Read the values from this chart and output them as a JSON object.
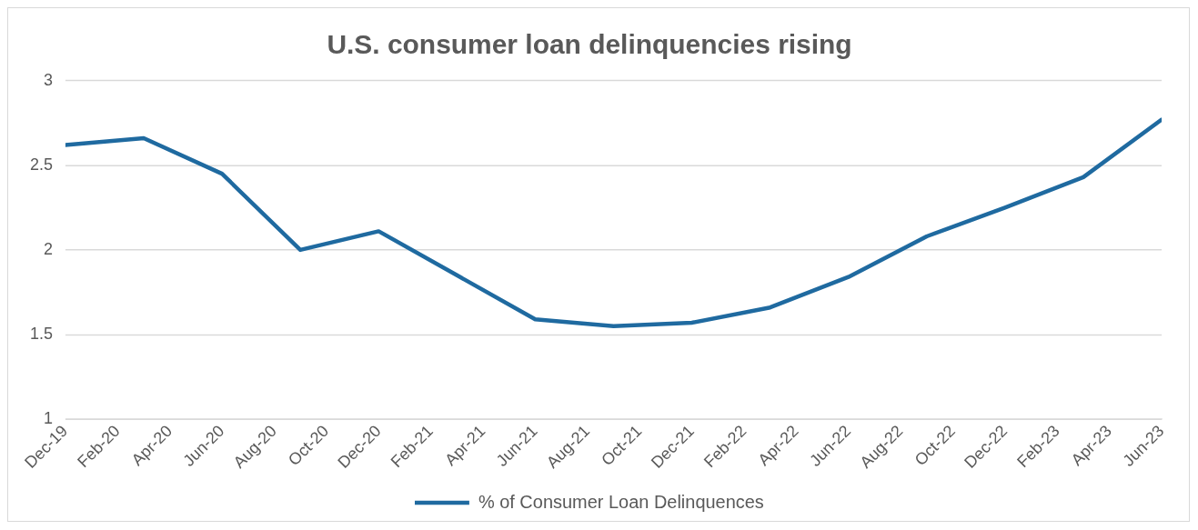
{
  "chart_data": {
    "type": "line",
    "title": "U.S. consumer loan delinquencies rising",
    "x": [
      "2019-12",
      "2020-03",
      "2020-06",
      "2020-09",
      "2020-12",
      "2021-03",
      "2021-06",
      "2021-09",
      "2021-12",
      "2022-03",
      "2022-06",
      "2022-09",
      "2022-12",
      "2023-03",
      "2023-06"
    ],
    "series": [
      {
        "name": "% of Consumer Loan Delinquences",
        "color": "#1f6aa0",
        "values": [
          2.62,
          2.66,
          2.45,
          2.0,
          2.11,
          1.85,
          1.59,
          1.55,
          1.57,
          1.66,
          1.84,
          2.08,
          2.25,
          2.43,
          2.77
        ]
      }
    ],
    "xlim": [
      "2019-12",
      "2023-06"
    ],
    "xticks": [
      {
        "value": "2019-12",
        "label": "Dec-19"
      },
      {
        "value": "2020-02",
        "label": "Feb-20"
      },
      {
        "value": "2020-04",
        "label": "Apr-20"
      },
      {
        "value": "2020-06",
        "label": "Jun-20"
      },
      {
        "value": "2020-08",
        "label": "Aug-20"
      },
      {
        "value": "2020-10",
        "label": "Oct-20"
      },
      {
        "value": "2020-12",
        "label": "Dec-20"
      },
      {
        "value": "2021-02",
        "label": "Feb-21"
      },
      {
        "value": "2021-04",
        "label": "Apr-21"
      },
      {
        "value": "2021-06",
        "label": "Jun-21"
      },
      {
        "value": "2021-08",
        "label": "Aug-21"
      },
      {
        "value": "2021-10",
        "label": "Oct-21"
      },
      {
        "value": "2021-12",
        "label": "Dec-21"
      },
      {
        "value": "2022-02",
        "label": "Feb-22"
      },
      {
        "value": "2022-04",
        "label": "Apr-22"
      },
      {
        "value": "2022-06",
        "label": "Jun-22"
      },
      {
        "value": "2022-08",
        "label": "Aug-22"
      },
      {
        "value": "2022-10",
        "label": "Oct-22"
      },
      {
        "value": "2022-12",
        "label": "Dec-22"
      },
      {
        "value": "2023-02",
        "label": "Feb-23"
      },
      {
        "value": "2023-04",
        "label": "Apr-23"
      },
      {
        "value": "2023-06",
        "label": "Jun-23"
      }
    ],
    "ylim": [
      1,
      3
    ],
    "yticks": [
      1,
      1.5,
      2,
      2.5,
      3
    ],
    "grid": "y",
    "legend": "bottom",
    "marker": "none",
    "line_style": "solid"
  }
}
